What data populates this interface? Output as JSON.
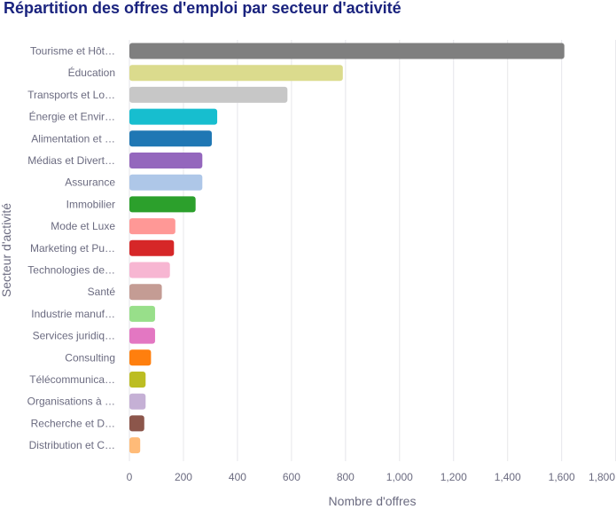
{
  "chart_data": {
    "type": "bar",
    "orientation": "horizontal",
    "title": "Répartition des offres d'emploi par secteur d'activité",
    "xlabel": "Nombre d'offres",
    "ylabel": "Secteur d'activité",
    "xlim": [
      0,
      1800
    ],
    "x_ticks": [
      "0",
      "200",
      "400",
      "600",
      "800",
      "1,000",
      "1,200",
      "1,400",
      "1,600",
      "1,800"
    ],
    "grid": true,
    "categories": [
      "Tourisme et Hôt…",
      "Éducation",
      "Transports et Lo…",
      "Énergie et Envir…",
      "Alimentation et …",
      "Médias et Divert…",
      "Assurance",
      "Immobilier",
      "Mode et Luxe",
      "Marketing et Pu…",
      "Technologies de…",
      "Santé",
      "Industrie manuf…",
      "Services juridiq…",
      "Consulting",
      "Télécommunica…",
      "Organisations à …",
      "Recherche et D…",
      "Distribution et C…"
    ],
    "values": [
      1610,
      790,
      585,
      325,
      305,
      270,
      270,
      245,
      170,
      165,
      150,
      120,
      95,
      95,
      80,
      60,
      60,
      55,
      40
    ],
    "colors": [
      "#7f7f7f",
      "#dbdb8d",
      "#c7c7c7",
      "#17becf",
      "#1f77b4",
      "#9467bd",
      "#aec7e8",
      "#2ca02c",
      "#ff9896",
      "#d62728",
      "#f7b6d2",
      "#c49c94",
      "#98df8a",
      "#e377c2",
      "#ff7f0e",
      "#bcbd22",
      "#c5b0d5",
      "#8c564b",
      "#ffbb78"
    ]
  }
}
